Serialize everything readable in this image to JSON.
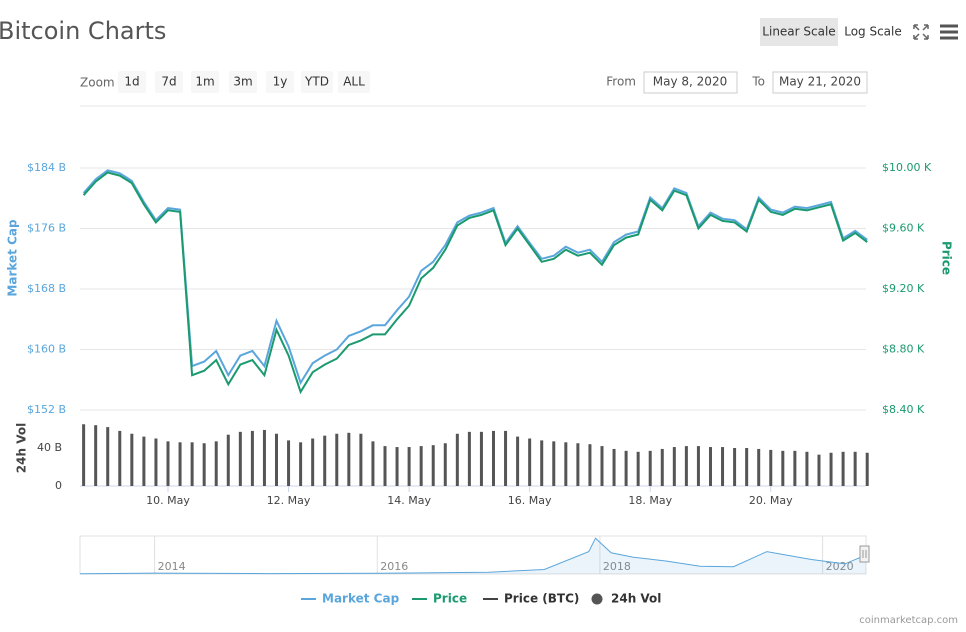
{
  "header": {
    "title": "Bitcoin Charts",
    "scale_buttons": [
      "Linear Scale",
      "Log Scale"
    ]
  },
  "zoom": {
    "label": "Zoom",
    "buttons": [
      "1d",
      "7d",
      "1m",
      "3m",
      "1y",
      "YTD",
      "ALL"
    ]
  },
  "range": {
    "from_label": "From",
    "from": "May 8, 2020",
    "to_label": "To",
    "to": "May 21, 2020"
  },
  "credits": "coinmarketcap.com",
  "chart_data": [
    {
      "type": "line",
      "x": [
        8.6,
        8.8,
        9.0,
        9.2,
        9.4,
        9.6,
        9.8,
        10.0,
        10.2,
        10.4,
        10.6,
        10.8,
        11.0,
        11.2,
        11.4,
        11.6,
        11.8,
        12.0,
        12.2,
        12.4,
        12.6,
        12.8,
        13.0,
        13.2,
        13.4,
        13.6,
        13.8,
        14.0,
        14.2,
        14.4,
        14.6,
        14.8,
        15.0,
        15.2,
        15.4,
        15.6,
        15.8,
        16.0,
        16.2,
        16.4,
        16.6,
        16.8,
        17.0,
        17.2,
        17.4,
        17.6,
        17.8,
        18.0,
        18.2,
        18.4,
        18.6,
        18.8,
        19.0,
        19.2,
        19.4,
        19.6,
        19.8,
        20.0,
        20.2,
        20.4,
        20.6,
        20.8,
        21.0,
        21.2,
        21.4,
        21.6
      ],
      "xlim": [
        8.54,
        21.58
      ],
      "xticks": [
        {
          "value": 10,
          "label": "10. May"
        },
        {
          "value": 12,
          "label": "12. May"
        },
        {
          "value": 14,
          "label": "14. May"
        },
        {
          "value": 16,
          "label": "16. May"
        },
        {
          "value": 18,
          "label": "18. May"
        },
        {
          "value": 20,
          "label": "20. May"
        }
      ],
      "y_label": "Market Cap",
      "ylim": [
        152,
        184
      ],
      "yticks": [
        {
          "value": 152,
          "label": "$152 B"
        },
        {
          "value": 160,
          "label": "$160 B"
        },
        {
          "value": 168,
          "label": "$168 B"
        },
        {
          "value": 176,
          "label": "$176 B"
        },
        {
          "value": 184,
          "label": "$184 B"
        }
      ],
      "y2_label": "Price",
      "y2lim": [
        8.4,
        10.0
      ],
      "y2ticks": [
        {
          "value": 8.4,
          "label": "$8.40 K"
        },
        {
          "value": 8.8,
          "label": "$8.80 K"
        },
        {
          "value": 9.2,
          "label": "$9.20 K"
        },
        {
          "value": 9.6,
          "label": "$9.60 K"
        },
        {
          "value": 10.0,
          "label": "$10.00 K"
        }
      ],
      "grid": true,
      "series": [
        {
          "name": "Market Cap",
          "color": "#5aa6dc",
          "values": [
            180.7,
            182.5,
            183.7,
            183.3,
            182.3,
            179.5,
            177.1,
            178.7,
            178.5,
            157.8,
            158.4,
            159.8,
            156.6,
            159.2,
            159.8,
            157.8,
            163.8,
            160.4,
            155.6,
            158.2,
            159.2,
            160.0,
            161.8,
            162.4,
            163.2,
            163.2,
            165.2,
            167.0,
            170.4,
            171.6,
            173.8,
            176.8,
            177.7,
            178.1,
            178.7,
            174.1,
            176.3,
            174.1,
            172.0,
            172.4,
            173.6,
            172.8,
            173.2,
            171.6,
            174.2,
            175.2,
            175.6,
            180.1,
            178.7,
            181.3,
            180.7,
            176.3,
            178.1,
            177.3,
            177.1,
            175.9,
            180.1,
            178.5,
            178.1,
            178.9,
            178.7,
            179.1,
            179.5,
            174.7,
            175.7,
            174.5
          ]
        },
        {
          "name": "Price",
          "color": "#1a9a6e",
          "axis": "y2",
          "values": [
            9.82,
            9.91,
            9.97,
            9.95,
            9.9,
            9.76,
            9.64,
            9.72,
            9.71,
            8.63,
            8.66,
            8.73,
            8.57,
            8.7,
            8.73,
            8.63,
            8.93,
            8.76,
            8.52,
            8.65,
            8.7,
            8.74,
            8.83,
            8.86,
            8.9,
            8.9,
            9.0,
            9.09,
            9.27,
            9.34,
            9.46,
            9.62,
            9.67,
            9.69,
            9.72,
            9.49,
            9.6,
            9.49,
            9.38,
            9.4,
            9.46,
            9.42,
            9.44,
            9.36,
            9.49,
            9.54,
            9.56,
            9.79,
            9.72,
            9.85,
            9.82,
            9.6,
            9.69,
            9.65,
            9.64,
            9.58,
            9.79,
            9.71,
            9.69,
            9.73,
            9.72,
            9.74,
            9.76,
            9.52,
            9.57,
            9.51
          ]
        },
        {
          "name": "Price (BTC)",
          "color": "#444444"
        }
      ]
    },
    {
      "type": "bar",
      "x": [
        8.6,
        8.8,
        9.0,
        9.2,
        9.4,
        9.6,
        9.8,
        10.0,
        10.2,
        10.4,
        10.6,
        10.8,
        11.0,
        11.2,
        11.4,
        11.6,
        11.8,
        12.0,
        12.2,
        12.4,
        12.6,
        12.8,
        13.0,
        13.2,
        13.4,
        13.6,
        13.8,
        14.0,
        14.2,
        14.4,
        14.6,
        14.8,
        15.0,
        15.2,
        15.4,
        15.6,
        15.8,
        16.0,
        16.2,
        16.4,
        16.6,
        16.8,
        17.0,
        17.2,
        17.4,
        17.6,
        17.8,
        18.0,
        18.2,
        18.4,
        18.6,
        18.8,
        19.0,
        19.2,
        19.4,
        19.6,
        19.8,
        20.0,
        20.2,
        20.4,
        20.6,
        20.8,
        21.0,
        21.2,
        21.4,
        21.6
      ],
      "xlim": [
        8.54,
        21.58
      ],
      "y_label": "24h Vol",
      "ylim": [
        0,
        80
      ],
      "yticks": [
        0,
        {
          "value": 40,
          "label": "40 B"
        }
      ],
      "series": [
        {
          "name": "24h Vol",
          "color": "#555555",
          "values": [
            65,
            64,
            62,
            58,
            55,
            52,
            50,
            47,
            46,
            46,
            45,
            47,
            54,
            57,
            58,
            59,
            55,
            48,
            46,
            50,
            53,
            55,
            56,
            55,
            47,
            42,
            41,
            41,
            42,
            43,
            45,
            55,
            57,
            57,
            58,
            58,
            52,
            50,
            48,
            47,
            46,
            45,
            44,
            42,
            39,
            37,
            36,
            37,
            39,
            41,
            42,
            42,
            41,
            41,
            40,
            40,
            39,
            38,
            37,
            37,
            36,
            33,
            35,
            36,
            36,
            35
          ]
        }
      ]
    },
    {
      "type": "area",
      "x": [
        2013.33,
        2014.0,
        2015.0,
        2016.0,
        2017.0,
        2017.5,
        2017.9,
        2017.96,
        2018.1,
        2018.3,
        2018.6,
        2018.9,
        2019.2,
        2019.5,
        2019.9,
        2020.2,
        2020.39
      ],
      "xlim": [
        2013.33,
        2020.39
      ],
      "xticks": [
        2014,
        2016,
        2018,
        2020
      ],
      "ylim": [
        0,
        340
      ],
      "color": "#5aa6dc",
      "values": [
        1.5,
        8,
        4,
        6,
        16,
        40,
        200,
        320,
        190,
        150,
        115,
        70,
        65,
        200,
        130,
        90,
        170
      ]
    }
  ]
}
